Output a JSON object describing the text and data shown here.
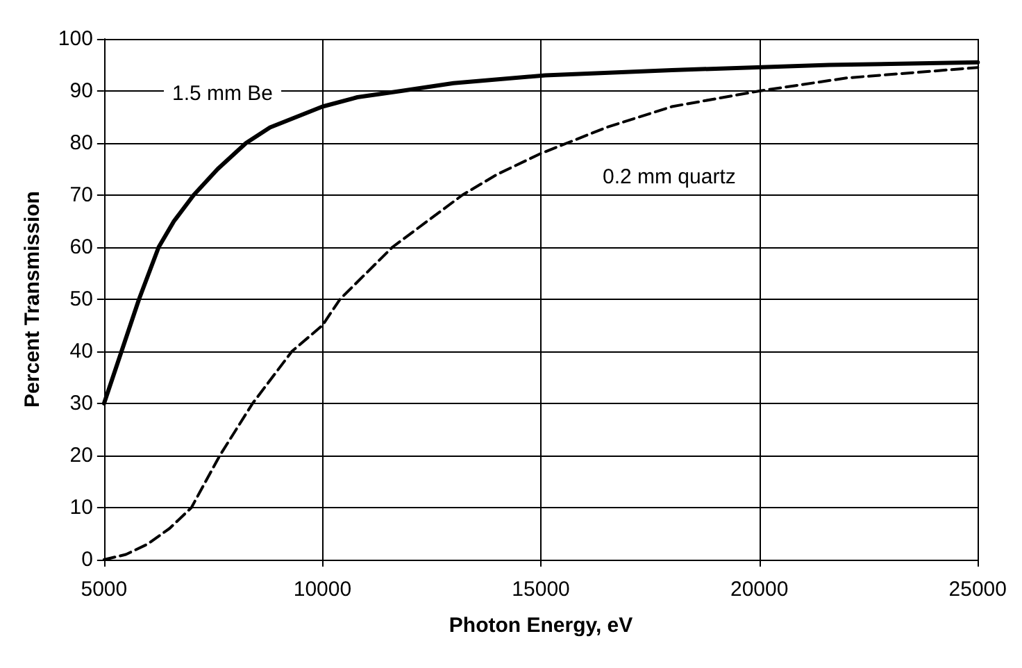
{
  "chart_data": {
    "type": "line",
    "xlabel": "Photon Energy, eV",
    "ylabel": "Percent Transmission",
    "xlim": [
      5000,
      25000
    ],
    "xticks": [
      5000,
      10000,
      15000,
      20000,
      25000
    ],
    "ylim": [
      0,
      100
    ],
    "yticks": [
      0,
      10,
      20,
      30,
      40,
      50,
      60,
      70,
      80,
      90,
      100
    ],
    "grid": true,
    "marker": "none",
    "series": [
      {
        "color": "#000000",
        "line_style": "solid",
        "x": [
          5000,
          5400,
          5800,
          6250,
          6600,
          7050,
          7600,
          8250,
          8800,
          9400,
          10000,
          10800,
          11800,
          13000,
          15100,
          18000,
          21600,
          25000
        ],
        "values": [
          30,
          40,
          50,
          60,
          65,
          70,
          75,
          80,
          83,
          85,
          87,
          88.8,
          90,
          91.5,
          93,
          94,
          95,
          95.5
        ]
      },
      {
        "color": "#000000",
        "line_style": "dashed",
        "x": [
          5000,
          5500,
          6000,
          6500,
          7000,
          7650,
          8400,
          9300,
          10000,
          10400,
          11000,
          11600,
          12400,
          13200,
          14000,
          15000,
          16500,
          18000,
          20000,
          22000,
          25000
        ],
        "values": [
          0,
          1,
          3,
          6,
          10,
          20,
          30,
          40,
          45,
          50,
          55,
          60,
          65,
          70,
          74,
          78,
          83,
          87,
          90,
          92.5,
          94.5
        ]
      }
    ],
    "annotations": [
      "1.5 mm Be",
      "0.2 mm quartz"
    ]
  }
}
